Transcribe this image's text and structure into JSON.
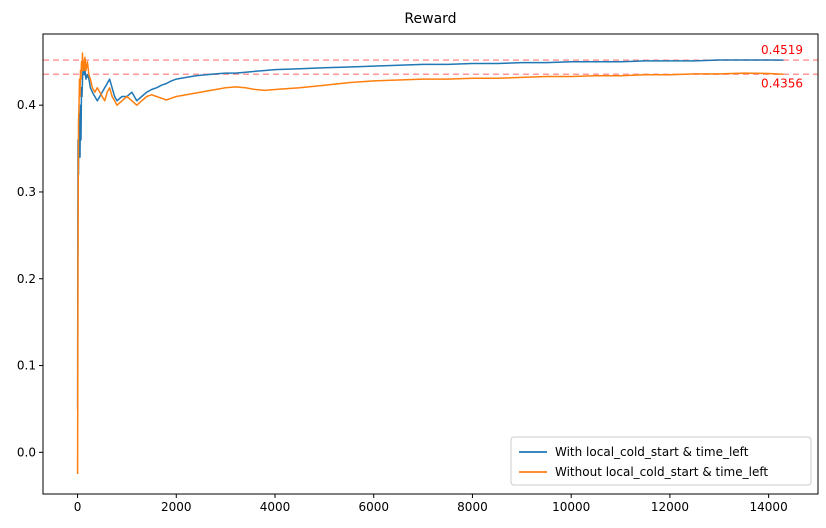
{
  "chart_data": {
    "type": "line",
    "title": "Reward",
    "xlabel": "",
    "ylabel": "",
    "xlim": [
      -700,
      15000
    ],
    "ylim": [
      -0.048,
      0.482
    ],
    "x_ticks": [
      0,
      2000,
      4000,
      6000,
      8000,
      10000,
      12000,
      14000
    ],
    "y_ticks": [
      0.0,
      0.1,
      0.2,
      0.3,
      0.4
    ],
    "x_tick_labels": [
      "0",
      "2000",
      "4000",
      "6000",
      "8000",
      "10000",
      "12000",
      "14000"
    ],
    "y_tick_labels": [
      "0.0",
      "0.1",
      "0.2",
      "0.3",
      "0.4"
    ],
    "grid": false,
    "legend_position": "bottom-right",
    "series": [
      {
        "name": "With local_cold_start & time_left",
        "color": "#1f77b4",
        "x": [
          0,
          10,
          20,
          30,
          40,
          50,
          60,
          70,
          80,
          90,
          100,
          110,
          120,
          130,
          140,
          150,
          170,
          200,
          230,
          260,
          300,
          350,
          400,
          450,
          500,
          550,
          600,
          650,
          700,
          750,
          800,
          900,
          1000,
          1100,
          1200,
          1300,
          1400,
          1500,
          1600,
          1700,
          1800,
          1900,
          2000,
          2200,
          2400,
          2600,
          2800,
          3000,
          3200,
          3400,
          3600,
          3800,
          4000,
          4500,
          5000,
          5500,
          6000,
          6500,
          7000,
          7500,
          8000,
          8500,
          9000,
          9500,
          10000,
          10500,
          11000,
          11500,
          12000,
          12500,
          13000,
          13500,
          14000,
          14300
        ],
        "y": [
          0.05,
          0.36,
          0.32,
          0.39,
          0.37,
          0.34,
          0.4,
          0.36,
          0.42,
          0.41,
          0.43,
          0.44,
          0.45,
          0.445,
          0.435,
          0.44,
          0.43,
          0.435,
          0.43,
          0.42,
          0.415,
          0.41,
          0.405,
          0.41,
          0.415,
          0.42,
          0.425,
          0.43,
          0.42,
          0.41,
          0.405,
          0.41,
          0.41,
          0.415,
          0.405,
          0.41,
          0.415,
          0.418,
          0.42,
          0.423,
          0.425,
          0.428,
          0.43,
          0.432,
          0.434,
          0.435,
          0.436,
          0.437,
          0.437,
          0.438,
          0.439,
          0.44,
          0.441,
          0.442,
          0.443,
          0.444,
          0.445,
          0.446,
          0.447,
          0.447,
          0.448,
          0.448,
          0.449,
          0.449,
          0.45,
          0.45,
          0.45,
          0.451,
          0.451,
          0.451,
          0.452,
          0.452,
          0.452,
          0.4519
        ]
      },
      {
        "name": "Without local_cold_start & time_left",
        "color": "#ff7f0e",
        "x": [
          0,
          10,
          20,
          30,
          40,
          50,
          60,
          70,
          80,
          90,
          100,
          110,
          120,
          130,
          140,
          150,
          170,
          200,
          230,
          260,
          300,
          350,
          400,
          450,
          500,
          550,
          600,
          650,
          700,
          750,
          800,
          900,
          1000,
          1100,
          1200,
          1300,
          1400,
          1500,
          1600,
          1700,
          1800,
          1900,
          2000,
          2200,
          2400,
          2600,
          2800,
          3000,
          3200,
          3400,
          3600,
          3800,
          4000,
          4500,
          5000,
          5500,
          6000,
          6500,
          7000,
          7500,
          8000,
          8500,
          9000,
          9500,
          10000,
          10500,
          11000,
          11500,
          12000,
          12500,
          13000,
          13500,
          14000,
          14300
        ],
        "y": [
          -0.025,
          0.22,
          0.38,
          0.4,
          0.43,
          0.41,
          0.44,
          0.43,
          0.45,
          0.44,
          0.46,
          0.44,
          0.45,
          0.44,
          0.45,
          0.455,
          0.44,
          0.45,
          0.435,
          0.43,
          0.42,
          0.415,
          0.42,
          0.415,
          0.41,
          0.405,
          0.415,
          0.42,
          0.41,
          0.405,
          0.4,
          0.405,
          0.41,
          0.405,
          0.4,
          0.405,
          0.41,
          0.412,
          0.41,
          0.408,
          0.406,
          0.408,
          0.41,
          0.412,
          0.414,
          0.416,
          0.418,
          0.42,
          0.421,
          0.42,
          0.418,
          0.417,
          0.418,
          0.42,
          0.423,
          0.426,
          0.428,
          0.429,
          0.43,
          0.43,
          0.431,
          0.431,
          0.432,
          0.433,
          0.433,
          0.434,
          0.434,
          0.435,
          0.435,
          0.436,
          0.436,
          0.437,
          0.4365,
          0.4356
        ]
      }
    ],
    "reference_lines": [
      {
        "value": 0.4519,
        "label": "0.4519",
        "color": "#ff9999",
        "label_color": "#ff0000",
        "label_side": "above"
      },
      {
        "value": 0.4356,
        "label": "0.4356",
        "color": "#ff9999",
        "label_color": "#ff0000",
        "label_side": "below"
      }
    ]
  }
}
